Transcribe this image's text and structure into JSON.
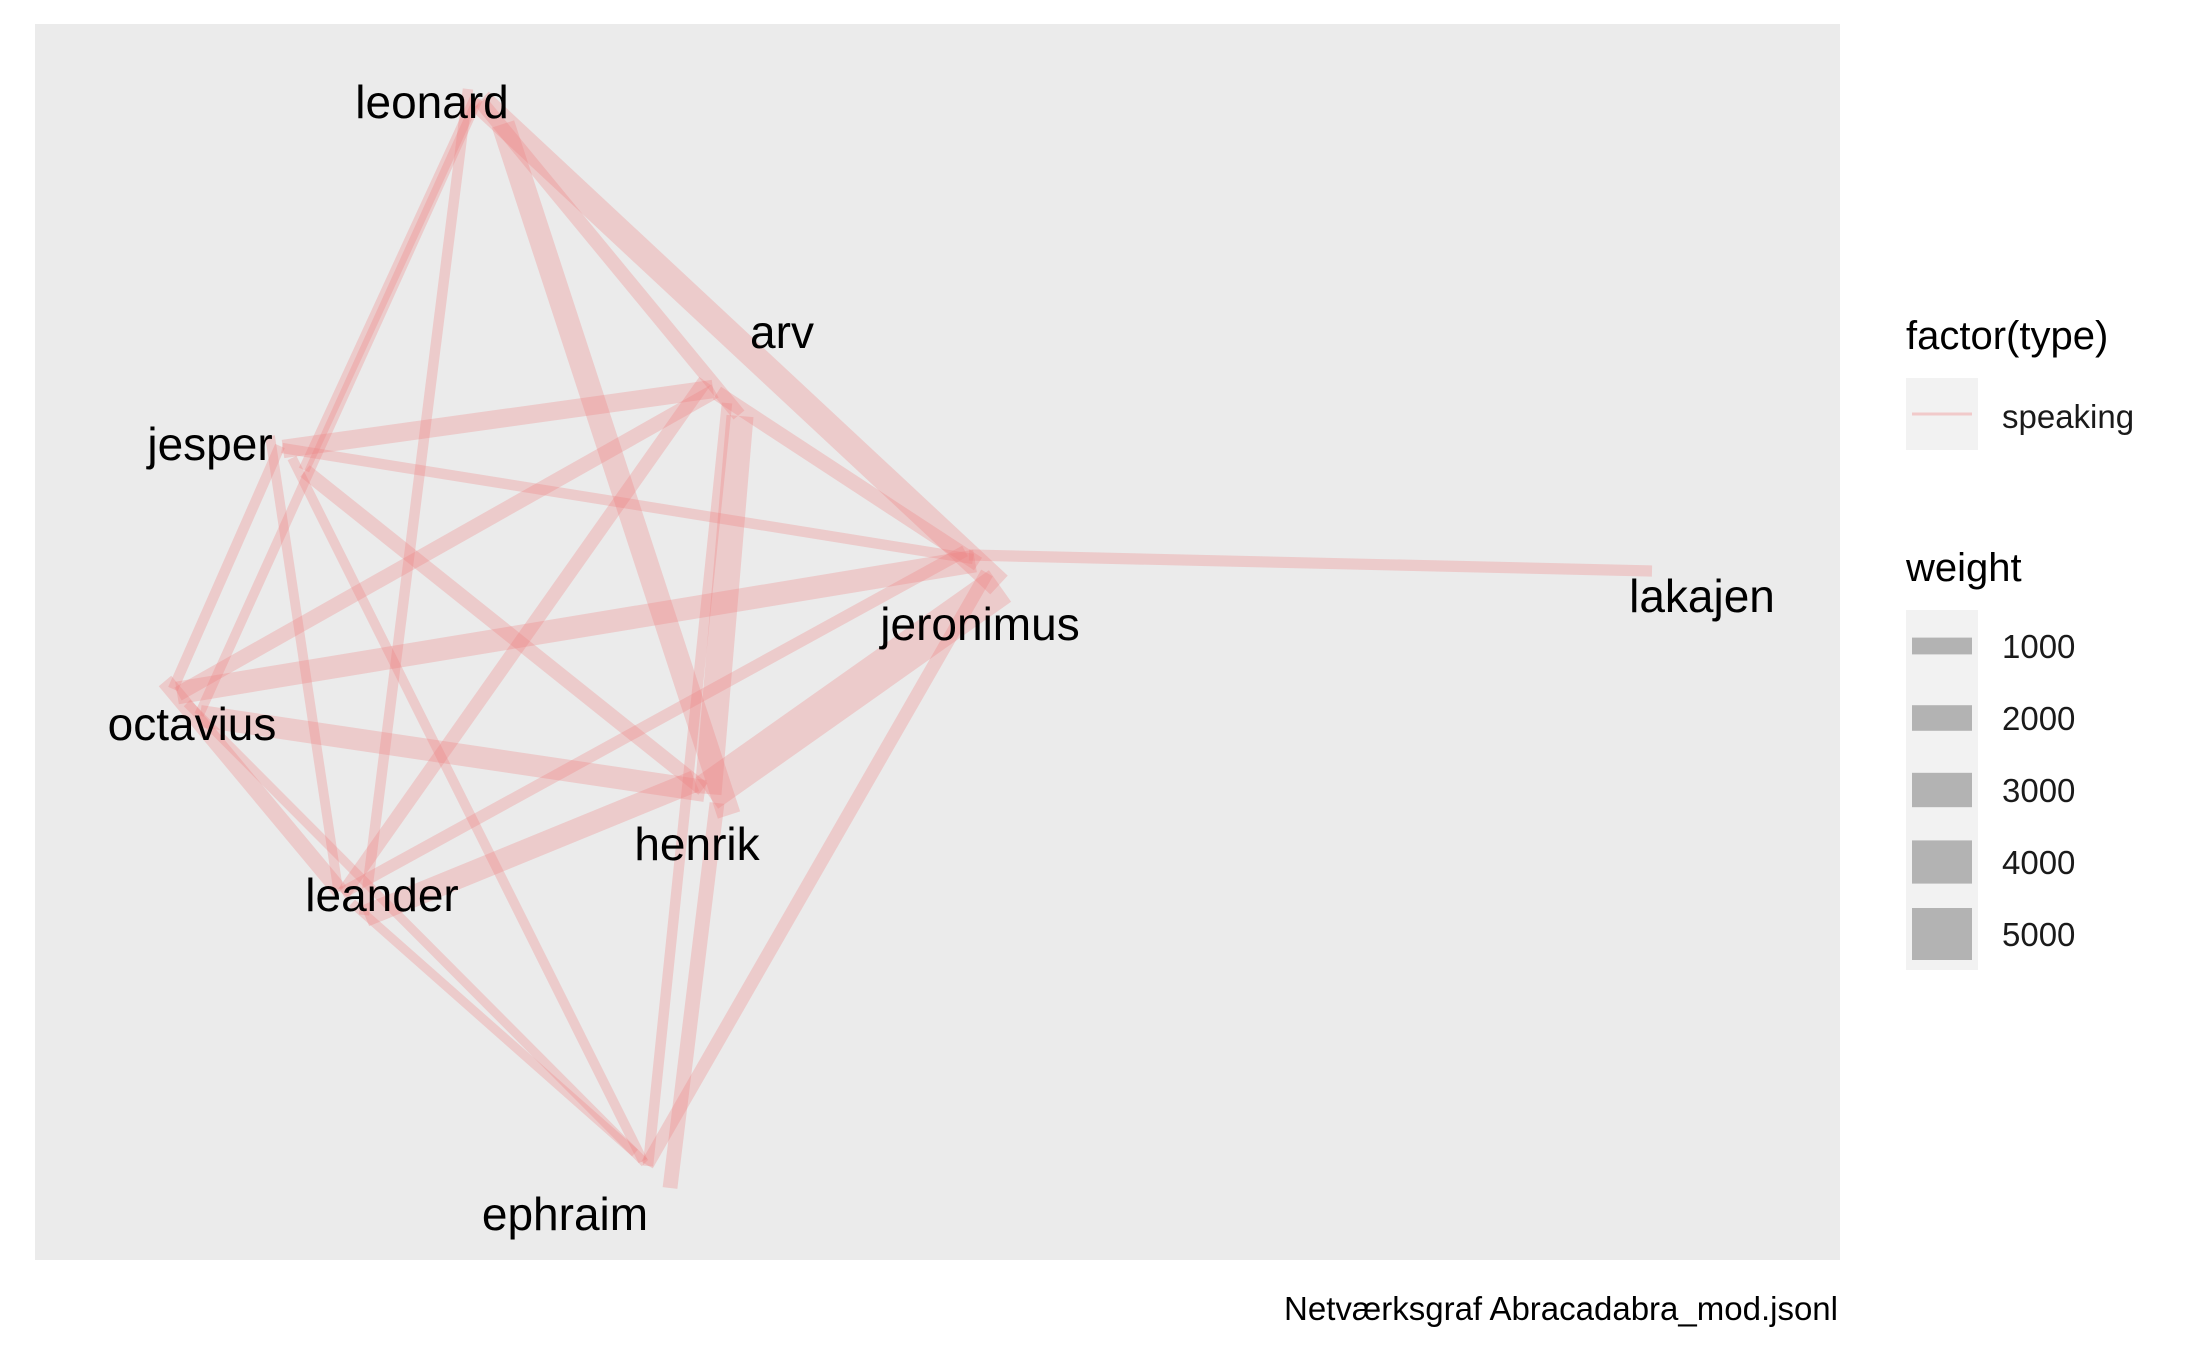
{
  "caption": "Netværksgraf Abracadabra_mod.jsonl",
  "colors": {
    "panel": "#ebebeb",
    "edge": "#f08080",
    "legend_key_bg": "#f2f2f2",
    "legend_weight_fill": "#b3b3b3"
  },
  "nodes": [
    {
      "id": "leonard",
      "label": "leonard"
    },
    {
      "id": "arv",
      "label": "arv"
    },
    {
      "id": "jesper",
      "label": "jesper"
    },
    {
      "id": "jeronimus",
      "label": "jeronimus"
    },
    {
      "id": "lakajen",
      "label": "lakajen"
    },
    {
      "id": "octavius",
      "label": "octavius"
    },
    {
      "id": "henrik",
      "label": "henrik"
    },
    {
      "id": "leander",
      "label": "leander"
    },
    {
      "id": "ephraim",
      "label": "ephraim"
    }
  ],
  "edges": [
    {
      "source": "leonard",
      "target": "arv",
      "weight": 1400
    },
    {
      "source": "leonard",
      "target": "jeronimus",
      "weight": 3000
    },
    {
      "source": "leonard",
      "target": "henrik",
      "weight": 2700
    },
    {
      "source": "leonard",
      "target": "jesper",
      "weight": 1000
    },
    {
      "source": "leonard",
      "target": "octavius",
      "weight": 800
    },
    {
      "source": "leonard",
      "target": "leander",
      "weight": 900
    },
    {
      "source": "arv",
      "target": "jesper",
      "weight": 2000
    },
    {
      "source": "arv",
      "target": "octavius",
      "weight": 1500
    },
    {
      "source": "arv",
      "target": "jeronimus",
      "weight": 1500
    },
    {
      "source": "arv",
      "target": "henrik",
      "weight": 3200
    },
    {
      "source": "arv",
      "target": "leander",
      "weight": 1400
    },
    {
      "source": "arv",
      "target": "ephraim",
      "weight": 900
    },
    {
      "source": "jesper",
      "target": "jeronimus",
      "weight": 900
    },
    {
      "source": "jesper",
      "target": "henrik",
      "weight": 1500
    },
    {
      "source": "jesper",
      "target": "octavius",
      "weight": 900
    },
    {
      "source": "jesper",
      "target": "leander",
      "weight": 800
    },
    {
      "source": "jesper",
      "target": "ephraim",
      "weight": 800
    },
    {
      "source": "jeronimus",
      "target": "octavius",
      "weight": 2600
    },
    {
      "source": "jeronimus",
      "target": "henrik",
      "weight": 4800
    },
    {
      "source": "jeronimus",
      "target": "leander",
      "weight": 1100
    },
    {
      "source": "jeronimus",
      "target": "ephraim",
      "weight": 1300
    },
    {
      "source": "jeronimus",
      "target": "lakajen",
      "weight": 1000
    },
    {
      "source": "octavius",
      "target": "henrik",
      "weight": 2500
    },
    {
      "source": "octavius",
      "target": "leander",
      "weight": 1700
    },
    {
      "source": "henrik",
      "target": "leander",
      "weight": 2500
    },
    {
      "source": "henrik",
      "target": "ephraim",
      "weight": 1500
    },
    {
      "source": "leander",
      "target": "ephraim",
      "weight": 700
    },
    {
      "source": "octavius",
      "target": "ephraim",
      "weight": 700
    }
  ],
  "legend": {
    "type_title": "factor(type)",
    "type_items": [
      {
        "label": "speaking",
        "color": "#f08080"
      }
    ],
    "weight_title": "weight",
    "weight_items": [
      {
        "label": "1000",
        "value": 1000
      },
      {
        "label": "2000",
        "value": 2000
      },
      {
        "label": "3000",
        "value": 3000
      },
      {
        "label": "4000",
        "value": 4000
      },
      {
        "label": "5000",
        "value": 5000
      }
    ]
  }
}
